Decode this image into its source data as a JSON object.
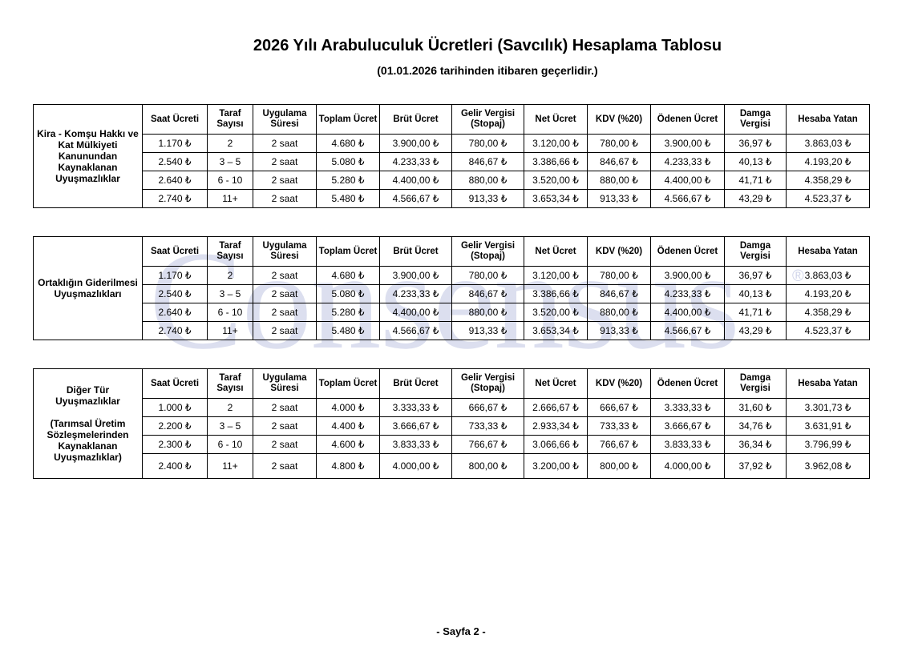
{
  "title": "2026 Yılı Arabuluculuk Ücretleri (Savcılık) Hesaplama Tablosu",
  "subtitle": "(01.01.2026 tarihinden itibaren geçerlidir.)",
  "watermark": "Consensus",
  "watermark_mark": "®",
  "footer": "- Sayfa 2 -",
  "tables": [
    {
      "section": "Kira - Komşu Hakkı ve Kat Mülkiyeti Kanunundan Kaynaklanan Uyuşmazlıklar",
      "headers": [
        "Saat Ücreti",
        "Taraf Sayısı",
        "Uygulama Süresi",
        "Toplam Ücret",
        "Brüt Ücret",
        "Gelir Vergisi (Stopaj)",
        "Net Ücret",
        "KDV (%20)",
        "Ödenen Ücret",
        "Damga Vergisi",
        "Hesaba Yatan"
      ],
      "rows": [
        [
          "1.170 ₺",
          "2",
          "2 saat",
          "4.680 ₺",
          "3.900,00 ₺",
          "780,00 ₺",
          "3.120,00 ₺",
          "780,00 ₺",
          "3.900,00 ₺",
          "36,97 ₺",
          "3.863,03 ₺"
        ],
        [
          "2.540 ₺",
          "3 – 5",
          "2 saat",
          "5.080 ₺",
          "4.233,33 ₺",
          "846,67 ₺",
          "3.386,66 ₺",
          "846,67 ₺",
          "4.233,33 ₺",
          "40,13 ₺",
          "4.193,20 ₺"
        ],
        [
          "2.640 ₺",
          "6 - 10",
          "2 saat",
          "5.280 ₺",
          "4.400,00 ₺",
          "880,00 ₺",
          "3.520,00 ₺",
          "880,00 ₺",
          "4.400,00 ₺",
          "41,71 ₺",
          "4.358,29 ₺"
        ],
        [
          "2.740 ₺",
          "11+",
          "2 saat",
          "5.480 ₺",
          "4.566,67 ₺",
          "913,33 ₺",
          "3.653,34 ₺",
          "913,33 ₺",
          "4.566,67 ₺",
          "43,29 ₺",
          "4.523,37 ₺"
        ]
      ]
    },
    {
      "section": "Ortaklığın Giderilmesi Uyuşmazlıkları",
      "headers": [
        "Saat Ücreti",
        "Taraf Sayısı",
        "Uygulama Süresi",
        "Toplam Ücret",
        "Brüt Ücret",
        "Gelir Vergisi (Stopaj)",
        "Net Ücret",
        "KDV (%20)",
        "Ödenen Ücret",
        "Damga Vergisi",
        "Hesaba Yatan"
      ],
      "rows": [
        [
          "1.170 ₺",
          "2",
          "2 saat",
          "4.680 ₺",
          "3.900,00 ₺",
          "780,00 ₺",
          "3.120,00 ₺",
          "780,00 ₺",
          "3.900,00 ₺",
          "36,97 ₺",
          "3.863,03 ₺"
        ],
        [
          "2.540 ₺",
          "3 – 5",
          "2 saat",
          "5.080 ₺",
          "4.233,33 ₺",
          "846,67 ₺",
          "3.386,66 ₺",
          "846,67 ₺",
          "4.233,33 ₺",
          "40,13 ₺",
          "4.193,20 ₺"
        ],
        [
          "2.640 ₺",
          "6 - 10",
          "2 saat",
          "5.280 ₺",
          "4.400,00 ₺",
          "880,00 ₺",
          "3.520,00 ₺",
          "880,00 ₺",
          "4.400,00 ₺",
          "41,71 ₺",
          "4.358,29 ₺"
        ],
        [
          "2.740 ₺",
          "11+",
          "2 saat",
          "5.480 ₺",
          "4.566,67 ₺",
          "913,33 ₺",
          "3.653,34 ₺",
          "913,33 ₺",
          "4.566,67 ₺",
          "43,29 ₺",
          "4.523,37 ₺"
        ]
      ]
    },
    {
      "section": "Diğer Tür Uyuşmazlıklar",
      "section_note": "(Tarımsal Üretim Sözleşmelerinden Kaynaklanan Uyuşmazlıklar)",
      "headers": [
        "Saat Ücreti",
        "Taraf Sayısı",
        "Uygulama Süresi",
        "Toplam Ücret",
        "Brüt Ücret",
        "Gelir Vergisi (Stopaj)",
        "Net Ücret",
        "KDV (%20)",
        "Ödenen Ücret",
        "Damga Vergisi",
        "Hesaba Yatan"
      ],
      "rows": [
        [
          "1.000 ₺",
          "2",
          "2 saat",
          "4.000 ₺",
          "3.333,33 ₺",
          "666,67 ₺",
          "2.666,67 ₺",
          "666,67 ₺",
          "3.333,33 ₺",
          "31,60 ₺",
          "3.301,73 ₺"
        ],
        [
          "2.200 ₺",
          "3 – 5",
          "2 saat",
          "4.400 ₺",
          "3.666,67 ₺",
          "733,33 ₺",
          "2.933,34 ₺",
          "733,33 ₺",
          "3.666,67 ₺",
          "34,76 ₺",
          "3.631,91 ₺"
        ],
        [
          "2.300 ₺",
          "6 - 10",
          "2 saat",
          "4.600 ₺",
          "3.833,33 ₺",
          "766,67 ₺",
          "3.066,66 ₺",
          "766,67 ₺",
          "3.833,33 ₺",
          "36,34 ₺",
          "3.796,99 ₺"
        ],
        [
          "2.400 ₺",
          "11+",
          "2 saat",
          "4.800 ₺",
          "4.000,00 ₺",
          "800,00 ₺",
          "3.200,00 ₺",
          "800,00 ₺",
          "4.000,00 ₺",
          "37,92 ₺",
          "3.962,08 ₺"
        ]
      ]
    }
  ]
}
